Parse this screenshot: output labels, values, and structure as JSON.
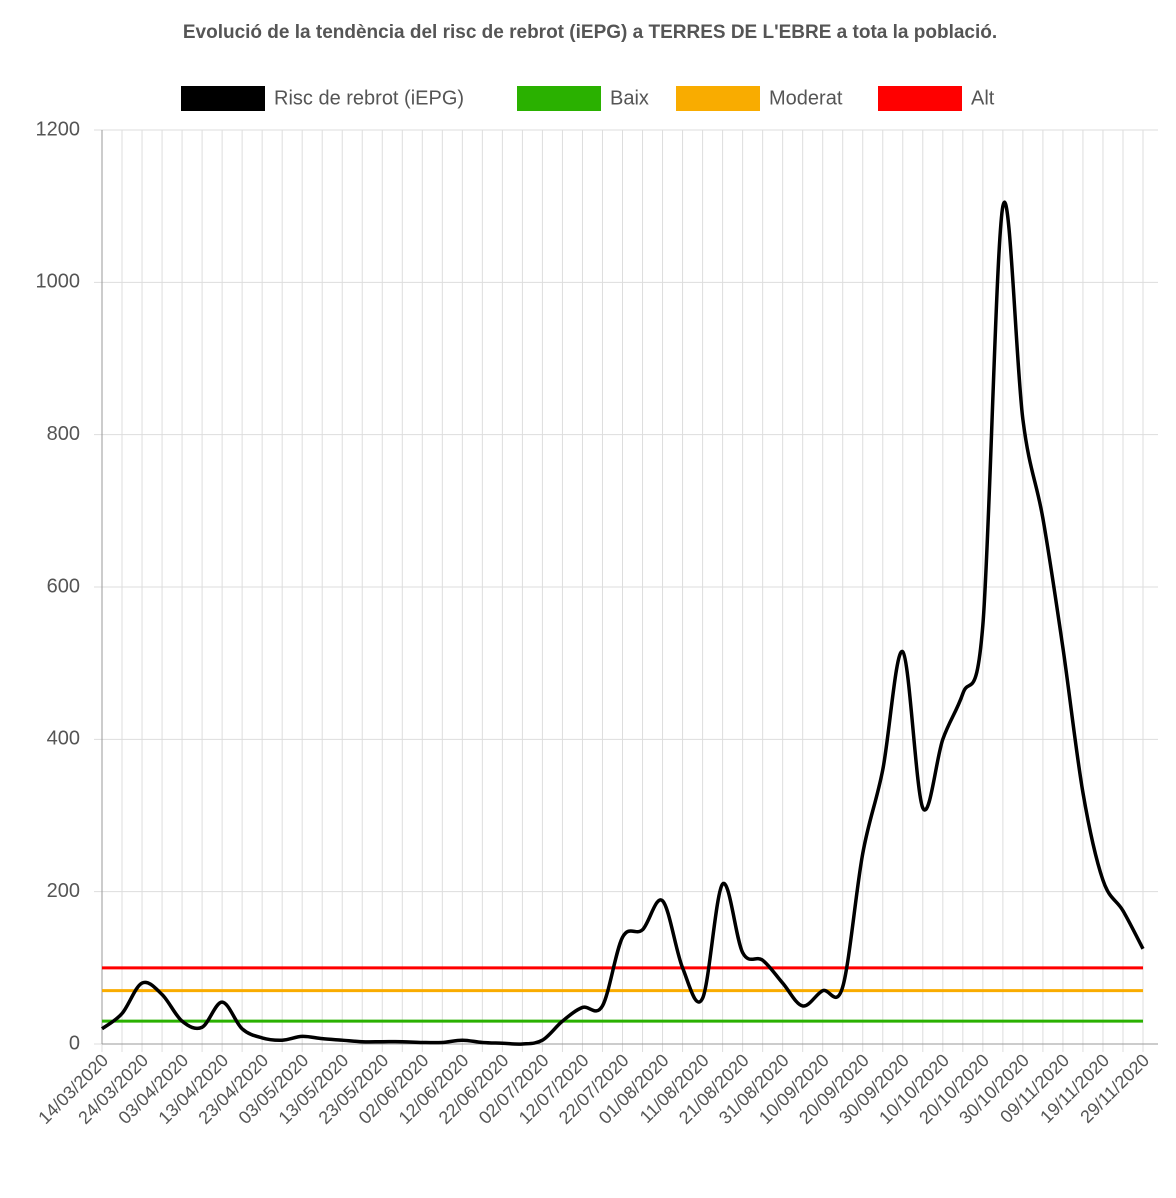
{
  "chart_data": {
    "type": "line",
    "title": "Evolució de la tendència del risc de rebrot (iEPG) a TERRES DE L'EBRE a tota la població.",
    "categories": [
      "14/03/2020",
      null,
      "24/03/2020",
      null,
      "03/04/2020",
      null,
      "13/04/2020",
      null,
      "23/04/2020",
      null,
      "03/05/2020",
      null,
      "13/05/2020",
      null,
      "23/05/2020",
      null,
      "02/06/2020",
      null,
      "12/06/2020",
      null,
      "22/06/2020",
      null,
      "02/07/2020",
      null,
      "12/07/2020",
      null,
      "22/07/2020",
      null,
      "01/08/2020",
      null,
      "11/08/2020",
      null,
      "21/08/2020",
      null,
      "31/08/2020",
      null,
      "10/09/2020",
      null,
      "20/09/2020",
      null,
      "30/09/2020",
      null,
      "10/10/2020",
      null,
      "20/10/2020",
      null,
      "30/10/2020",
      null,
      "09/11/2020",
      null,
      "19/11/2020",
      null,
      "29/11/2020"
    ],
    "series": [
      {
        "name": "Risc de rebrot (iEPG)",
        "color": "#000000",
        "values": [
          20,
          40,
          80,
          65,
          30,
          22,
          55,
          20,
          8,
          5,
          10,
          7,
          5,
          3,
          3,
          3,
          2,
          2,
          5,
          2,
          1,
          0,
          5,
          30,
          48,
          50,
          140,
          150,
          188,
          100,
          60,
          210,
          120,
          110,
          80,
          50,
          70,
          75,
          250,
          360,
          515,
          310,
          400,
          460,
          550,
          1100,
          820,
          690,
          520,
          330,
          215,
          175,
          125
        ]
      },
      {
        "name": "Baix",
        "color": "#2ab100",
        "values": [
          30,
          30,
          30,
          30,
          30,
          30,
          30,
          30,
          30,
          30,
          30,
          30,
          30,
          30,
          30,
          30,
          30,
          30,
          30,
          30,
          30,
          30,
          30,
          30,
          30,
          30,
          30,
          30,
          30,
          30,
          30,
          30,
          30,
          30,
          30,
          30,
          30,
          30,
          30,
          30,
          30,
          30,
          30,
          30,
          30,
          30,
          30,
          30,
          30,
          30,
          30,
          30,
          30
        ]
      },
      {
        "name": "Moderat",
        "color": "#f9ac00",
        "values": [
          70,
          70,
          70,
          70,
          70,
          70,
          70,
          70,
          70,
          70,
          70,
          70,
          70,
          70,
          70,
          70,
          70,
          70,
          70,
          70,
          70,
          70,
          70,
          70,
          70,
          70,
          70,
          70,
          70,
          70,
          70,
          70,
          70,
          70,
          70,
          70,
          70,
          70,
          70,
          70,
          70,
          70,
          70,
          70,
          70,
          70,
          70,
          70,
          70,
          70,
          70,
          70,
          70
        ]
      },
      {
        "name": "Alt",
        "color": "#ff0000",
        "values": [
          100,
          100,
          100,
          100,
          100,
          100,
          100,
          100,
          100,
          100,
          100,
          100,
          100,
          100,
          100,
          100,
          100,
          100,
          100,
          100,
          100,
          100,
          100,
          100,
          100,
          100,
          100,
          100,
          100,
          100,
          100,
          100,
          100,
          100,
          100,
          100,
          100,
          100,
          100,
          100,
          100,
          100,
          100,
          100,
          100,
          100,
          100,
          100,
          100,
          100,
          100,
          100,
          100
        ]
      }
    ],
    "ylim": [
      0,
      1200
    ],
    "yticks": [
      0,
      200,
      400,
      600,
      800,
      1000,
      1200
    ],
    "grid": true
  }
}
